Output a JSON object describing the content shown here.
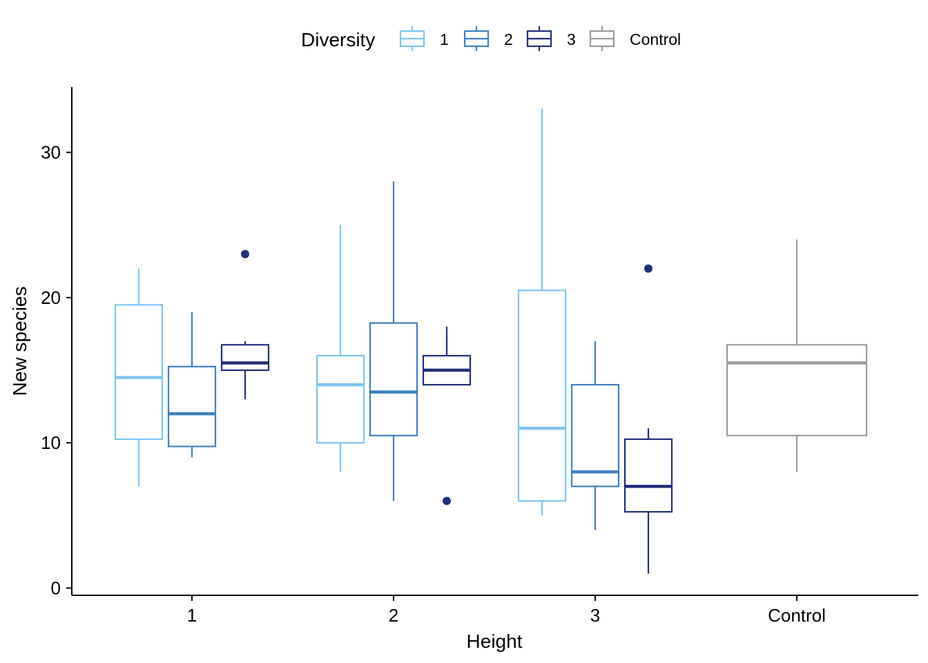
{
  "chart_data": {
    "type": "boxplot",
    "xlabel": "Height",
    "ylabel": "New species",
    "ylim": [
      -0.5,
      34.5
    ],
    "yticks": [
      0,
      10,
      20,
      30
    ],
    "categories": [
      "1",
      "2",
      "3",
      "Control"
    ],
    "legend": {
      "title": "Diversity",
      "placement": "top",
      "entries": [
        "1",
        "2",
        "3",
        "Control"
      ]
    },
    "colors": {
      "1": "#7DC4F3",
      "2": "#3F7FC1",
      "3": "#1F2F7A",
      "Control": "#9B9B9B"
    },
    "boxes": [
      {
        "height": "1",
        "diversity": "1",
        "whisker_low": 7,
        "q1": 10.25,
        "median": 14.5,
        "q3": 19.5,
        "whisker_high": 22,
        "outliers": []
      },
      {
        "height": "1",
        "diversity": "2",
        "whisker_low": 9,
        "q1": 9.75,
        "median": 12,
        "q3": 15.25,
        "whisker_high": 19,
        "outliers": []
      },
      {
        "height": "1",
        "diversity": "3",
        "whisker_low": 13,
        "q1": 15,
        "median": 15.5,
        "q3": 16.75,
        "whisker_high": 17,
        "outliers": [
          23
        ]
      },
      {
        "height": "2",
        "diversity": "1",
        "whisker_low": 8,
        "q1": 10,
        "median": 14,
        "q3": 16,
        "whisker_high": 25,
        "outliers": []
      },
      {
        "height": "2",
        "diversity": "2",
        "whisker_low": 6,
        "q1": 10.5,
        "median": 13.5,
        "q3": 18.25,
        "whisker_high": 28,
        "outliers": []
      },
      {
        "height": "2",
        "diversity": "3",
        "whisker_low": 14,
        "q1": 14,
        "median": 15,
        "q3": 16,
        "whisker_high": 18,
        "outliers": [
          6
        ]
      },
      {
        "height": "3",
        "diversity": "1",
        "whisker_low": 5,
        "q1": 6,
        "median": 11,
        "q3": 20.5,
        "whisker_high": 33,
        "outliers": []
      },
      {
        "height": "3",
        "diversity": "2",
        "whisker_low": 4,
        "q1": 7,
        "median": 8,
        "q3": 14,
        "whisker_high": 17,
        "outliers": []
      },
      {
        "height": "3",
        "diversity": "3",
        "whisker_low": 1,
        "q1": 5.25,
        "median": 7,
        "q3": 10.25,
        "whisker_high": 11,
        "outliers": [
          22
        ]
      },
      {
        "height": "Control",
        "diversity": "Control",
        "whisker_low": 8,
        "q1": 10.5,
        "median": 15.5,
        "q3": 16.75,
        "whisker_high": 24,
        "outliers": []
      }
    ]
  }
}
